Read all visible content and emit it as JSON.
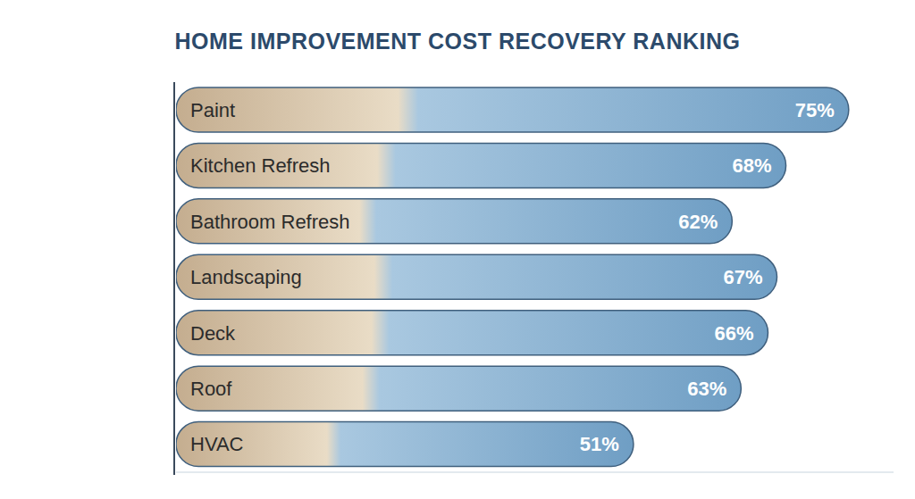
{
  "chart_data": {
    "type": "bar",
    "title": "HOME IMPROVEMENT COST RECOVERY RANKING",
    "orientation": "horizontal",
    "categories": [
      "Paint",
      "Kitchen Refresh",
      "Bathroom Refresh",
      "Landscaping",
      "Deck",
      "Roof",
      "HVAC"
    ],
    "values": [
      75,
      68,
      62,
      67,
      66,
      63,
      51
    ],
    "value_labels": [
      "75%",
      "68%",
      "62%",
      "67%",
      "66%",
      "63%",
      "51%"
    ],
    "data_labels": true,
    "xlim": [
      0,
      80
    ],
    "tick_labels": false,
    "color": "#6f9ec4"
  }
}
